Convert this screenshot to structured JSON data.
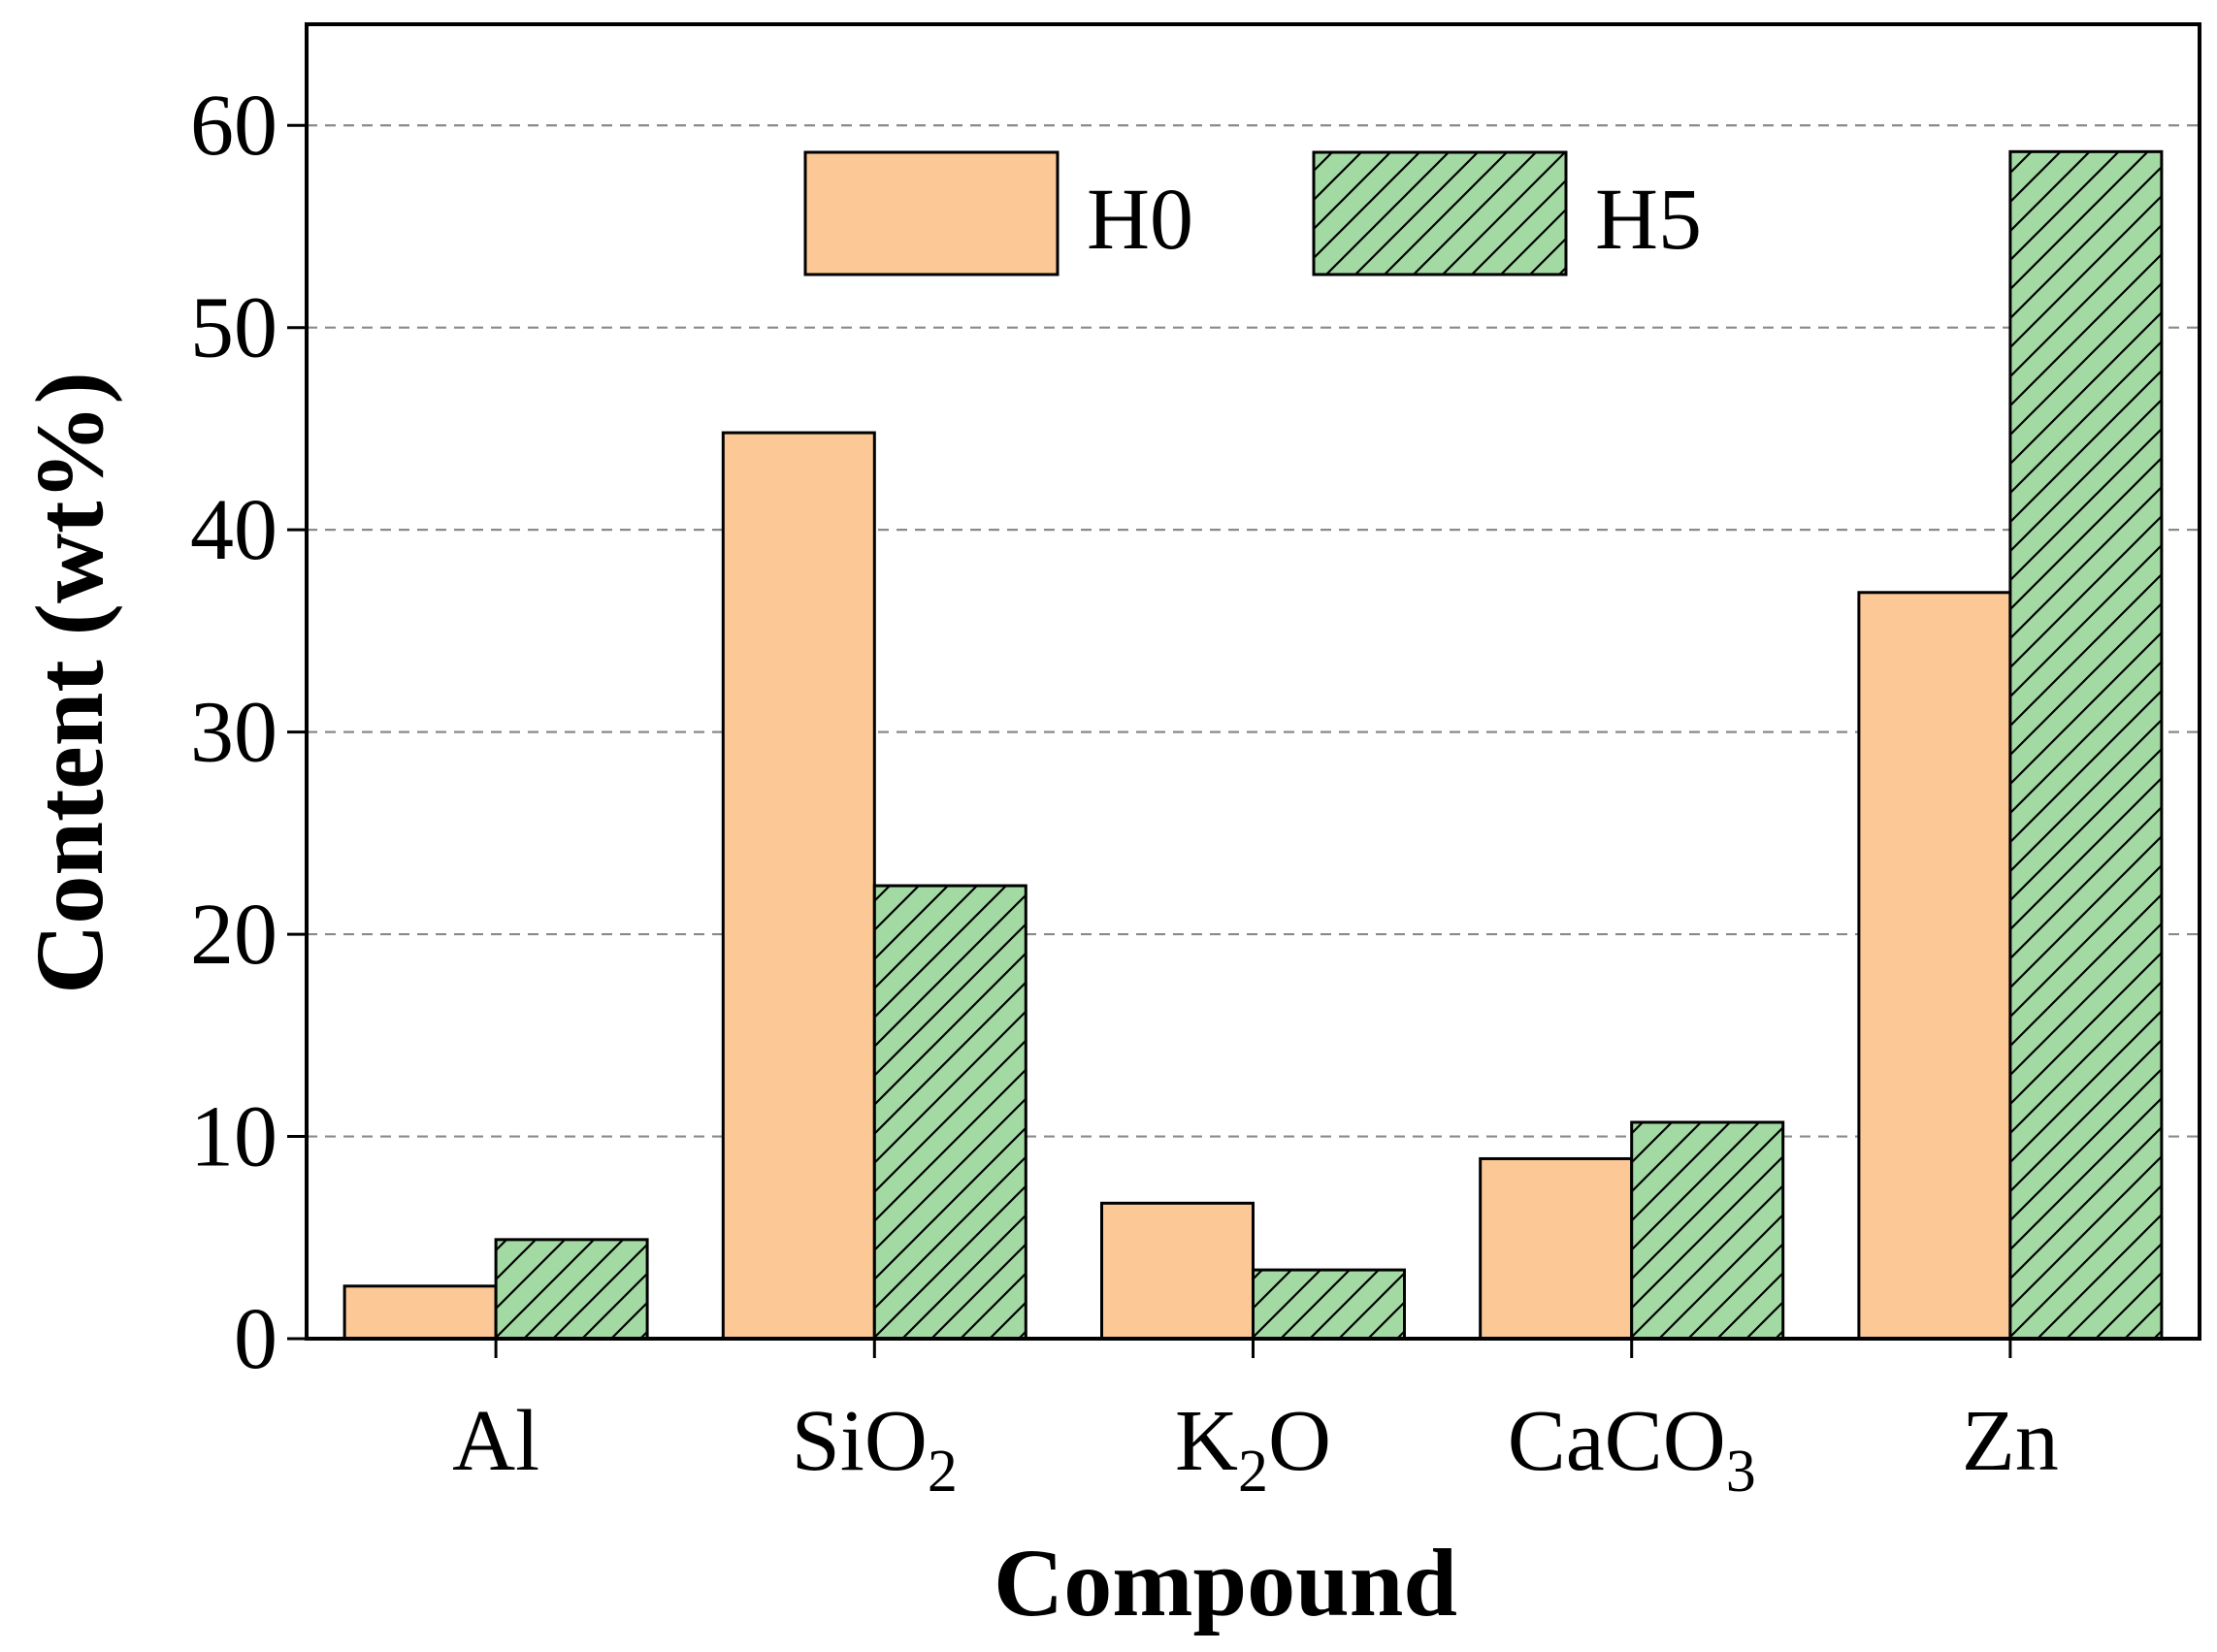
{
  "chart_data": {
    "type": "bar",
    "title": "",
    "xlabel": "Compound",
    "ylabel": "Content (wt%)",
    "categories": [
      {
        "base": "Al",
        "sub": ""
      },
      {
        "base": "SiO",
        "sub": "2"
      },
      {
        "base": "K",
        "sub": "2",
        "tail": "O"
      },
      {
        "base": "CaCO",
        "sub": "3"
      },
      {
        "base": "Zn",
        "sub": ""
      }
    ],
    "series": [
      {
        "name": "H0",
        "values": [
          2.6,
          44.8,
          6.7,
          8.9,
          36.9
        ],
        "color": "#fcc896",
        "hatch": false
      },
      {
        "name": "H5",
        "values": [
          4.9,
          22.4,
          3.4,
          10.7,
          58.7
        ],
        "color": "#a3d9a3",
        "hatch": true
      }
    ],
    "ylim": [
      0,
      65
    ],
    "yticks": [
      0,
      10,
      20,
      30,
      40,
      50,
      60
    ],
    "grid": true,
    "legend_position": "top-center"
  }
}
